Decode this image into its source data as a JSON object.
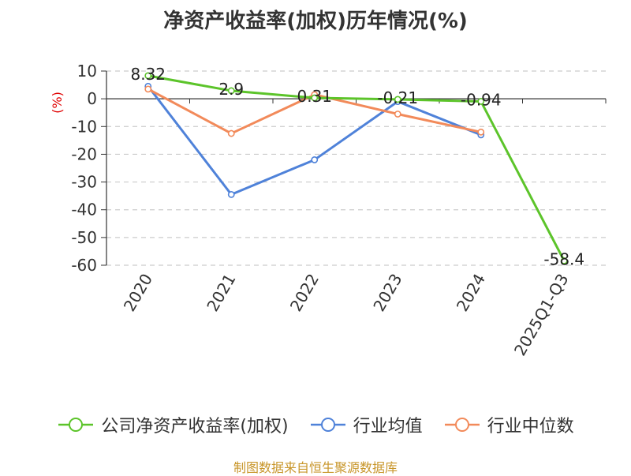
{
  "title": "净资产收益率(加权)历年情况(%)",
  "source": "制图数据来自恒生聚源数据库",
  "chart_data": {
    "type": "line",
    "title": "净资产收益率(加权)历年情况(%)",
    "ylabel": "(%)",
    "xlabel": "",
    "categories": [
      "2020",
      "2021",
      "2022",
      "2023",
      "2024",
      "2025Q1-Q3"
    ],
    "ylim": [
      -60,
      10
    ],
    "yticks": [
      10,
      0,
      -10,
      -20,
      -30,
      -40,
      -50,
      -60
    ],
    "grid": "horizontal dashed",
    "legend_position": "bottom",
    "series": [
      {
        "name": "公司净资产收益率(加权)",
        "color": "#5cc42a",
        "values": [
          8.32,
          2.9,
          0.31,
          -0.21,
          -0.94,
          -58.4
        ],
        "labels": [
          "8.32",
          "2.9",
          "0.31",
          "-0.21",
          "-0.94",
          "-58.4"
        ]
      },
      {
        "name": "行业均值",
        "color": "#4f82d9",
        "values": [
          4.5,
          -34.5,
          -22.0,
          -1.0,
          -13.0,
          null
        ]
      },
      {
        "name": "行业中位数",
        "color": "#f28a5a",
        "values": [
          3.5,
          -12.5,
          1.5,
          -5.5,
          -12.0,
          null
        ]
      }
    ]
  }
}
